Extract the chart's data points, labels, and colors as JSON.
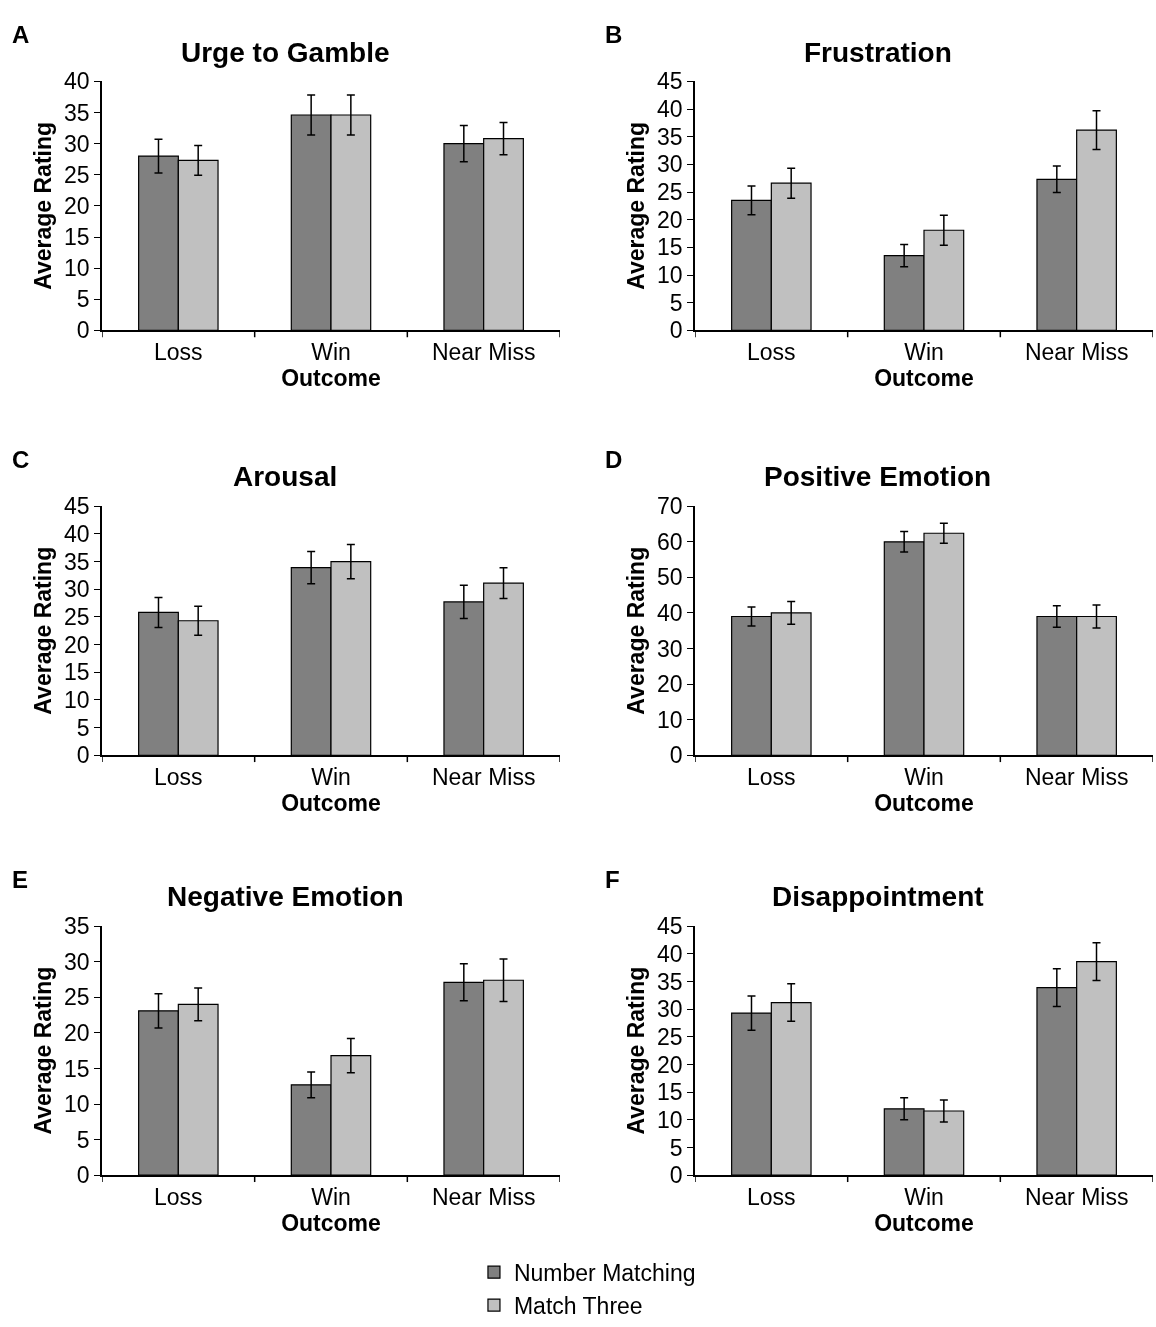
{
  "chart_data": [
    {
      "type": "bar",
      "title": "Urge to Gamble",
      "annotations": [
        "A"
      ],
      "xlabel": "Outcome",
      "ylabel": "Average Rating",
      "categories": [
        "Loss",
        "Win",
        "Near Miss"
      ],
      "ylim": [
        0,
        40
      ],
      "yticks": [
        0,
        5,
        10,
        15,
        20,
        25,
        30,
        35,
        40
      ],
      "series": [
        {
          "color": "#808080",
          "values": [
            28,
            34.6,
            30
          ],
          "errors": [
            2.7,
            3.2,
            2.9
          ]
        },
        {
          "color": "#c0c0c0",
          "values": [
            27.3,
            34.6,
            30.8
          ],
          "errors": [
            2.4,
            3.2,
            2.6
          ]
        }
      ]
    },
    {
      "type": "bar",
      "title": "Frustration",
      "annotations": [
        "B"
      ],
      "xlabel": "Outcome",
      "ylabel": "Average Rating",
      "categories": [
        "Loss",
        "Win",
        "Near Miss"
      ],
      "ylim": [
        0,
        45
      ],
      "yticks": [
        0,
        5,
        10,
        15,
        20,
        25,
        30,
        35,
        40,
        45
      ],
      "series": [
        {
          "color": "#808080",
          "values": [
            23.5,
            13.5,
            27.3
          ],
          "errors": [
            2.6,
            2.0,
            2.4
          ]
        },
        {
          "color": "#c0c0c0",
          "values": [
            26.6,
            18.1,
            36.2
          ],
          "errors": [
            2.7,
            2.7,
            3.5
          ]
        }
      ]
    },
    {
      "type": "bar",
      "title": "Arousal",
      "annotations": [
        "C"
      ],
      "xlabel": "Outcome",
      "ylabel": "Average Rating",
      "categories": [
        "Loss",
        "Win",
        "Near Miss"
      ],
      "ylim": [
        0,
        45
      ],
      "yticks": [
        0,
        5,
        10,
        15,
        20,
        25,
        30,
        35,
        40,
        45
      ],
      "series": [
        {
          "color": "#808080",
          "values": [
            25.8,
            33.9,
            27.7
          ],
          "errors": [
            2.7,
            2.9,
            3.0
          ]
        },
        {
          "color": "#c0c0c0",
          "values": [
            24.3,
            35.0,
            31.1
          ],
          "errors": [
            2.6,
            3.1,
            2.8
          ]
        }
      ]
    },
    {
      "type": "bar",
      "title": "Positive Emotion",
      "annotations": [
        "D"
      ],
      "xlabel": "Outcome",
      "ylabel": "Average Rating",
      "categories": [
        "Loss",
        "Win",
        "Near Miss"
      ],
      "ylim": [
        0,
        70
      ],
      "yticks": [
        0,
        10,
        20,
        30,
        40,
        50,
        60,
        70
      ],
      "series": [
        {
          "color": "#808080",
          "values": [
            39,
            60,
            39
          ],
          "errors": [
            2.7,
            2.9,
            3
          ]
        },
        {
          "color": "#c0c0c0",
          "values": [
            40,
            62.4,
            39
          ],
          "errors": [
            3.2,
            2.8,
            3.2
          ]
        }
      ]
    },
    {
      "type": "bar",
      "title": "Negative Emotion",
      "annotations": [
        "E"
      ],
      "xlabel": "Outcome",
      "ylabel": "Average Rating",
      "categories": [
        "Loss",
        "Win",
        "Near Miss"
      ],
      "ylim": [
        0,
        35
      ],
      "yticks": [
        0,
        5,
        10,
        15,
        20,
        25,
        30,
        35
      ],
      "series": [
        {
          "color": "#808080",
          "values": [
            23.1,
            12.7,
            27.1
          ],
          "errors": [
            2.4,
            1.8,
            2.6
          ]
        },
        {
          "color": "#c0c0c0",
          "values": [
            24,
            16.8,
            27.4
          ],
          "errors": [
            2.3,
            2.4,
            3.0
          ]
        }
      ]
    },
    {
      "type": "bar",
      "title": "Disappointment",
      "annotations": [
        "F"
      ],
      "xlabel": "Outcome",
      "ylabel": "Average Rating",
      "categories": [
        "Loss",
        "Win",
        "Near Miss"
      ],
      "ylim": [
        0,
        45
      ],
      "yticks": [
        0,
        5,
        10,
        15,
        20,
        25,
        30,
        35,
        40,
        45
      ],
      "legend": "bottom",
      "series": [
        {
          "name": "Number Matching",
          "color": "#808080",
          "values": [
            29.3,
            12,
            33.9
          ],
          "errors": [
            3.1,
            2.0,
            3.4
          ]
        },
        {
          "name": "Match Three",
          "color": "#c0c0c0",
          "values": [
            31.2,
            11.6,
            38.6
          ],
          "errors": [
            3.4,
            2.0,
            3.4
          ]
        }
      ]
    }
  ]
}
